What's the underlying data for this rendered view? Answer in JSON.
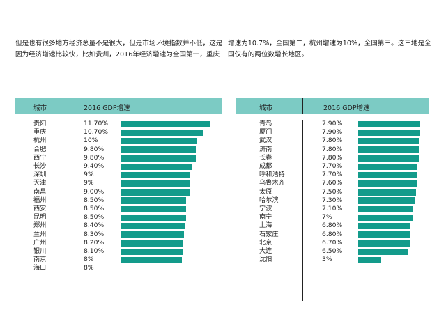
{
  "paragraph": {
    "left": "但是也有很多地方经济总量不是很大，但是市场环境指数并不低，这是因为经济增速比较快，比如贵州，2016年经济增速为全国第一，重庆",
    "right": "增速为10.7%，全国第二，杭州增速为10%，全国第三。这三地是全国仅有的两位数增长地区。"
  },
  "colors": {
    "header_bg": "#7ccbc4",
    "bar": "#139b8b"
  },
  "chart_data": [
    {
      "type": "table",
      "columns": [
        "城市",
        "2016 GDP增速"
      ],
      "categories": [
        "贵阳",
        "重庆",
        "杭州",
        "合肥",
        "西宁",
        "长沙",
        "深圳",
        "天津",
        "南昌",
        "福州",
        "西安",
        "昆明",
        "郑州",
        "兰州",
        "广州",
        "银川",
        "南京",
        "海口"
      ],
      "labels": [
        "11.70%",
        "10.70%",
        "10%",
        "9.80%",
        "9.80%",
        "9.40%",
        "9%",
        "9%",
        "9.00%",
        "8.50%",
        "8.50%",
        "8.50%",
        "8.40%",
        "8.30%",
        "8.20%",
        "8.10%",
        "8%",
        "8%"
      ],
      "values": [
        11.7,
        10.7,
        10.0,
        9.8,
        9.8,
        9.4,
        9.0,
        9.0,
        9.0,
        8.5,
        8.5,
        8.5,
        8.4,
        8.3,
        8.2,
        8.1,
        8.0,
        8.0
      ],
      "bar_shown": [
        true,
        true,
        true,
        true,
        true,
        true,
        true,
        true,
        true,
        true,
        true,
        true,
        true,
        true,
        true,
        true,
        true,
        false
      ]
    },
    {
      "type": "table",
      "columns": [
        "城市",
        "2016 GDP增速"
      ],
      "categories": [
        "青岛",
        "厦门",
        "武汉",
        "济南",
        "长春",
        "成都",
        "呼和浩特",
        "乌鲁木齐",
        "太原",
        "哈尔滨",
        "宁波",
        "南宁",
        "上海",
        "石家庄",
        "北京",
        "大连",
        "沈阳"
      ],
      "labels": [
        "7.90%",
        "7.90%",
        "7.80%",
        "7.80%",
        "7.80%",
        "7.70%",
        "7.70%",
        "7.60%",
        "7.50%",
        "7.30%",
        "7.10%",
        "7%",
        "6.80%",
        "6.80%",
        "6.70%",
        "6.50%",
        "3%"
      ],
      "values": [
        7.9,
        7.9,
        7.8,
        7.8,
        7.8,
        7.7,
        7.7,
        7.6,
        7.5,
        7.3,
        7.1,
        7.0,
        6.8,
        6.8,
        6.7,
        6.5,
        3.0
      ],
      "bar_shown": [
        true,
        true,
        true,
        true,
        true,
        true,
        true,
        true,
        true,
        true,
        true,
        true,
        true,
        true,
        true,
        true,
        true
      ]
    }
  ]
}
